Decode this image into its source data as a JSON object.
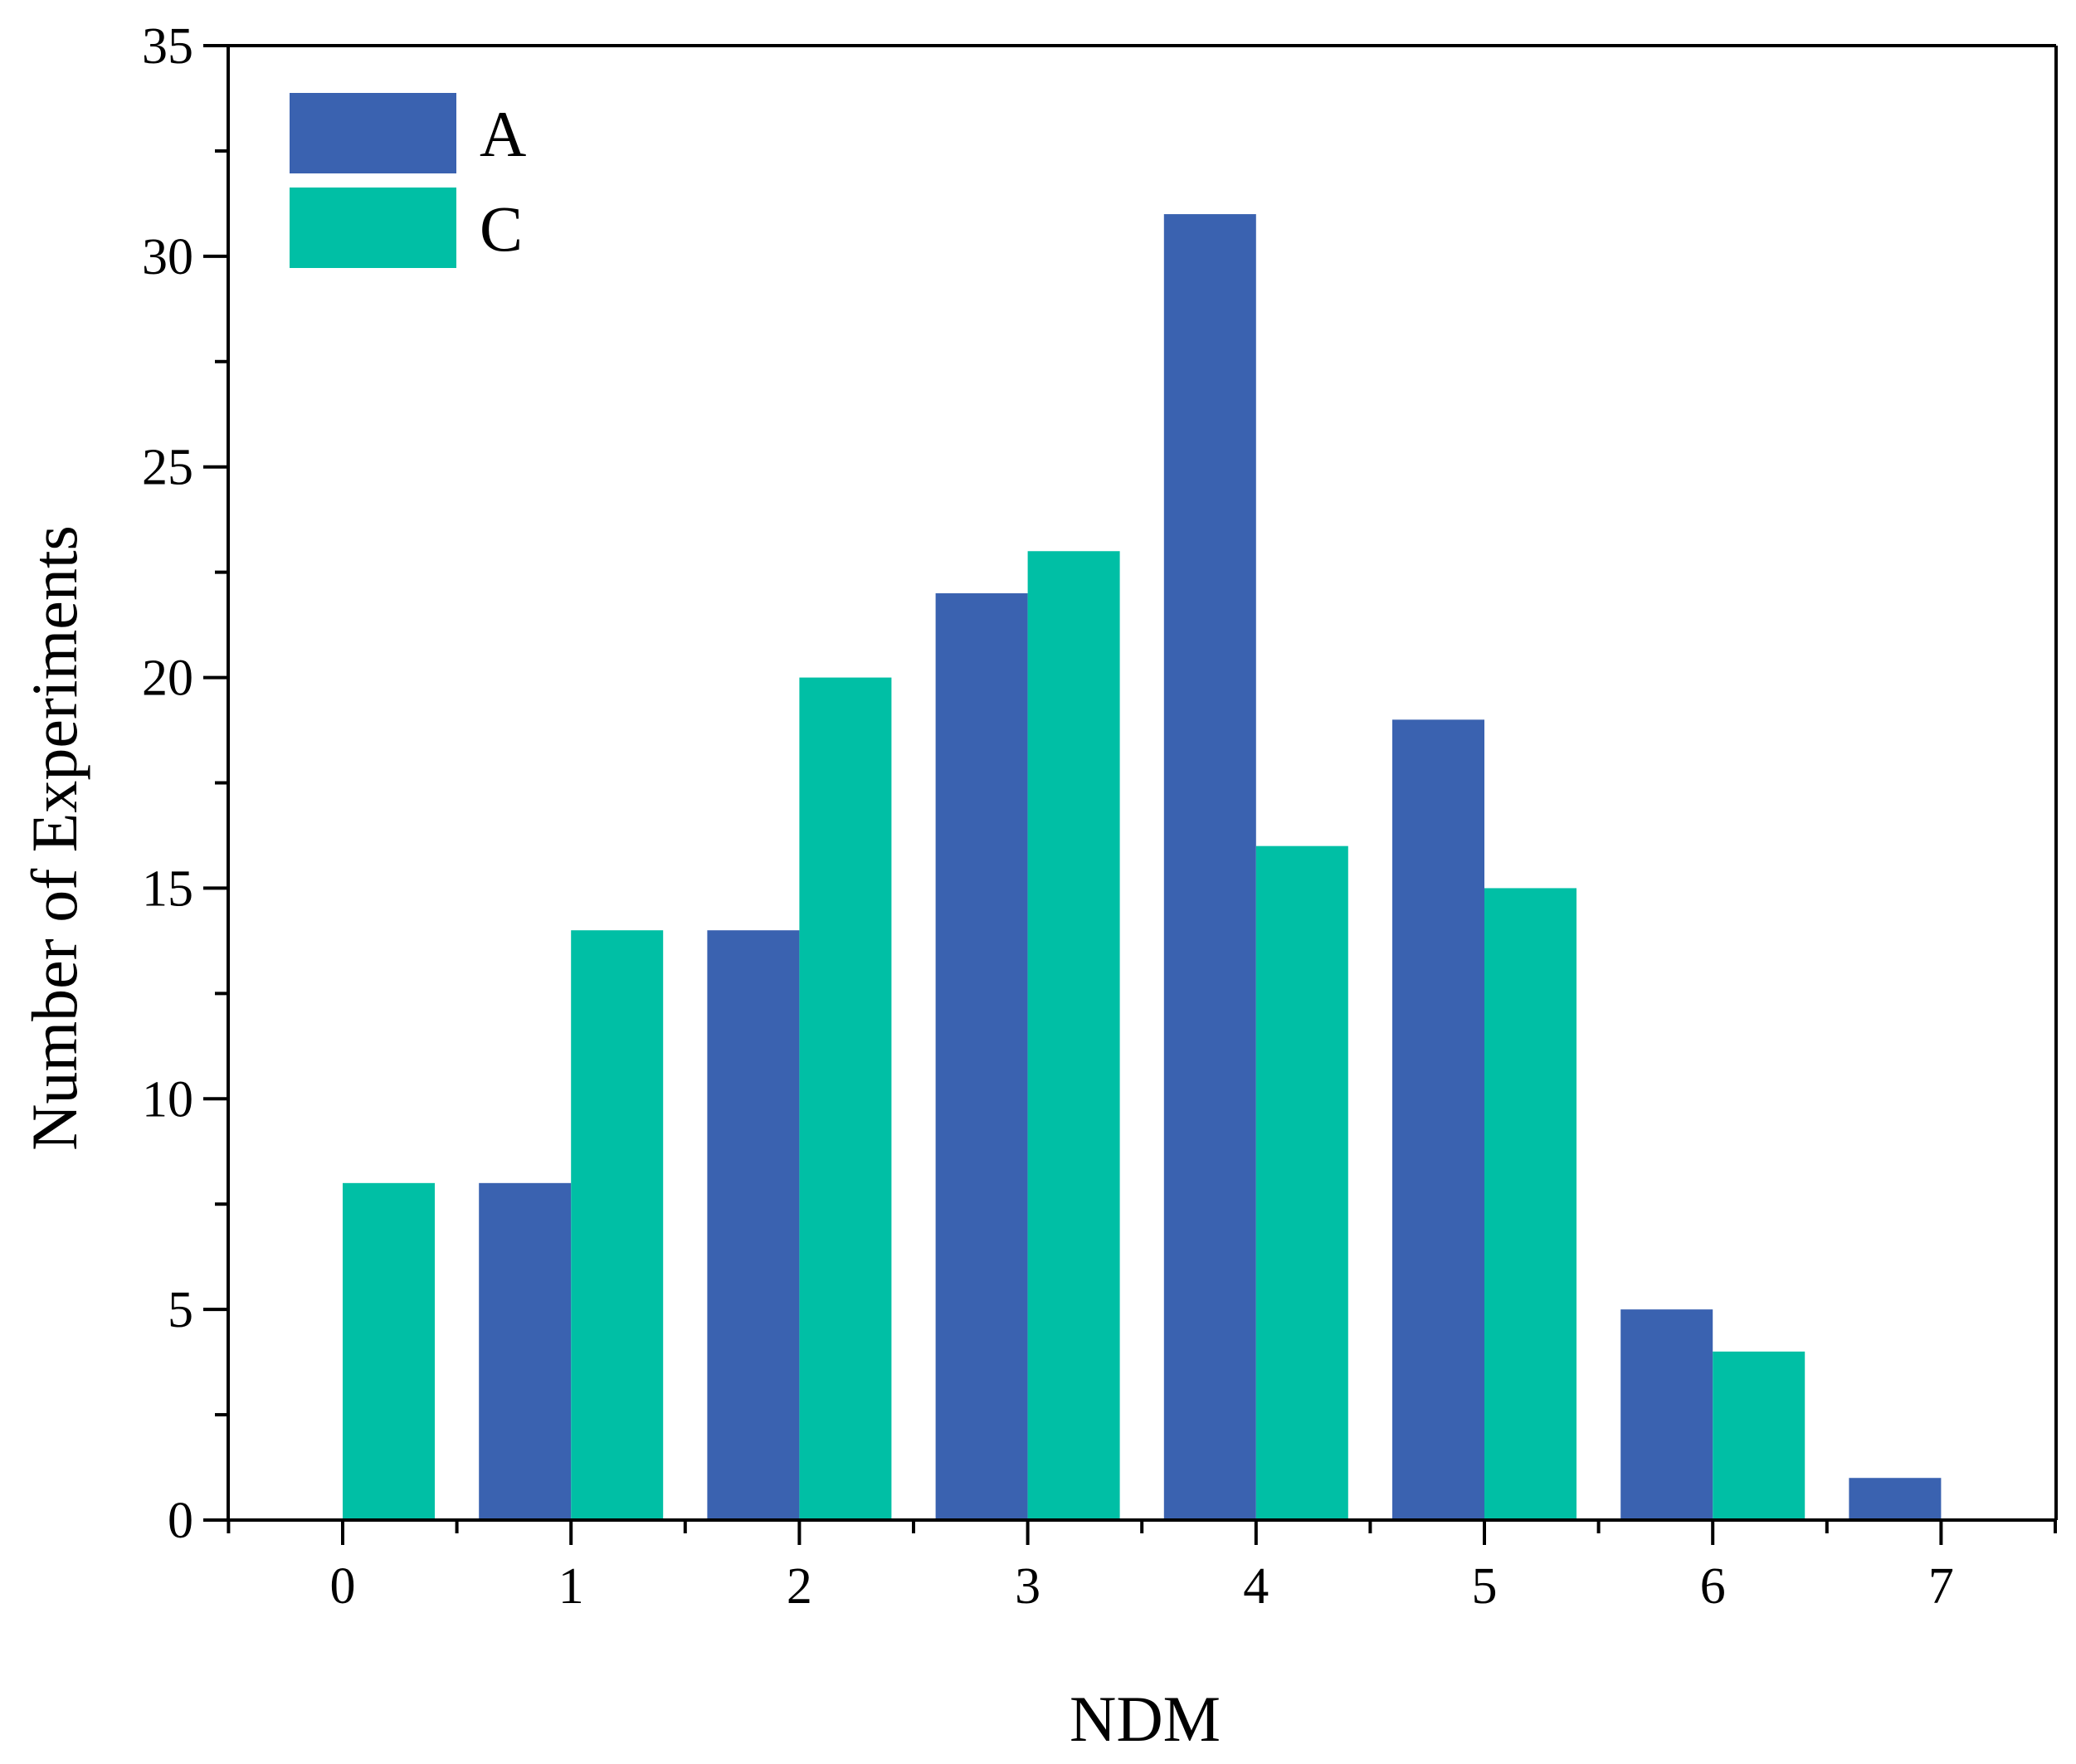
{
  "chart_data": {
    "type": "bar",
    "title": "",
    "xlabel": "NDM",
    "ylabel": "Number of Experiments",
    "categories": [
      "0",
      "1",
      "2",
      "3",
      "4",
      "5",
      "6",
      "7"
    ],
    "x": [
      0,
      1,
      2,
      3,
      4,
      5,
      6,
      7
    ],
    "series": [
      {
        "name": "A",
        "color": "#3a62b0",
        "values": [
          0,
          8,
          14,
          22,
          31,
          19,
          5,
          1
        ]
      },
      {
        "name": "C",
        "color": "#00bfa5",
        "values": [
          8,
          14,
          20,
          23,
          16,
          15,
          4,
          0
        ]
      }
    ],
    "xlim": [
      -0.5,
      7.5
    ],
    "ylim": [
      0,
      35
    ],
    "yticks": [
      "0",
      "5",
      "10",
      "15",
      "20",
      "25",
      "30",
      "35"
    ],
    "xticks": [
      "0",
      "1",
      "2",
      "3",
      "4",
      "5",
      "6",
      "7"
    ],
    "legend_position": "top-left",
    "grid": false
  }
}
